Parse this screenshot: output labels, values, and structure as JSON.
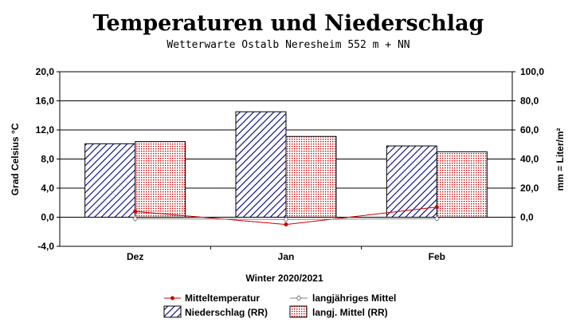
{
  "chart_data": {
    "type": "bar",
    "title": "Temperaturen und Niederschlag",
    "subtitle": "Wetterwarte Ostalb Neresheim 552 m + NN",
    "xlabel": "Winter 2020/2021",
    "ylabel_left": "Grad Celsius °C",
    "ylabel_right": "mm = Liter/m²",
    "categories": [
      "Dez",
      "Jan",
      "Feb"
    ],
    "y_left": {
      "range": [
        -4.0,
        20.0
      ],
      "ticks": [
        "20,0",
        "16,0",
        "12,0",
        "8,0",
        "4,0",
        "0,0",
        "-4,0"
      ],
      "tick_values": [
        20,
        16,
        12,
        8,
        4,
        0,
        -4
      ]
    },
    "y_right": {
      "range": [
        -20.0,
        100.0
      ],
      "ticks": [
        "100,0",
        "80,0",
        "60,0",
        "40,0",
        "20,0",
        "0,0"
      ],
      "tick_values": [
        100,
        80,
        60,
        40,
        20,
        0
      ]
    },
    "grid": true,
    "series": [
      {
        "name": "Niederschlag (RR)",
        "kind": "bar",
        "axis": "right",
        "values": [
          50.5,
          72.5,
          49.0
        ],
        "color": "#000080",
        "pattern": "diagonal-hatch"
      },
      {
        "name": "langj. Mittel (RR)",
        "kind": "bar",
        "axis": "right",
        "values": [
          52.0,
          55.5,
          45.0
        ],
        "color": "#cc0000",
        "pattern": "dotted"
      },
      {
        "name": "Mitteltemperatur",
        "kind": "line",
        "axis": "left",
        "values": [
          0.8,
          -1.0,
          1.4
        ],
        "color": "#cc0000",
        "marker": "dot"
      },
      {
        "name": "langjähriges Mittel",
        "kind": "line",
        "axis": "left",
        "values": [
          -0.2,
          -0.3,
          -0.2
        ],
        "color": "#808080",
        "marker": "diamond"
      }
    ],
    "legend_position": "bottom"
  }
}
